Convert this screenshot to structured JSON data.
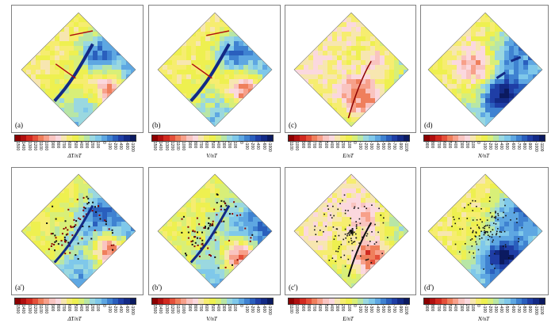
{
  "colors": [
    "#8b0000",
    "#b01010",
    "#d12a20",
    "#e4503a",
    "#ef7f5c",
    "#f7a08a",
    "#f9c4c0",
    "#fbd8de",
    "#f7e6b0",
    "#f6ed70",
    "#eef050",
    "#d8ef78",
    "#b8e6a6",
    "#9ad8e0",
    "#7fc8ea",
    "#5ea7e2",
    "#3f82d1",
    "#2a5fbd",
    "#1f3ea6",
    "#132a86",
    "#0b1a60"
  ],
  "panels": [
    {
      "label": "(a)",
      "unit": "ΔT/nT",
      "ticks": [
        "1500",
        "1400",
        "1300",
        "1200",
        "1100",
        "1000",
        "900",
        "800",
        "700",
        "600",
        "500",
        "400",
        "300",
        "200",
        "100",
        "0",
        "-100",
        "-200",
        "-400",
        "-600",
        "-1000"
      ]
    },
    {
      "label": "(b)",
      "unit": "V/nT",
      "ticks": [
        "1500",
        "1400",
        "1300",
        "1200",
        "1100",
        "1000",
        "900",
        "800",
        "700",
        "600",
        "500",
        "400",
        "300",
        "200",
        "100",
        "0",
        "-100",
        "-200",
        "-400",
        "-600",
        "-1000"
      ]
    },
    {
      "label": "(c)",
      "unit": "E/nT",
      "ticks": [
        "1100",
        "1000",
        "900",
        "800",
        "700",
        "600",
        "500",
        "400",
        "300",
        "200",
        "100",
        "0",
        "-100",
        "-200",
        "-300",
        "-400",
        "-500",
        "-600",
        "-700",
        "-900",
        "-1100"
      ]
    },
    {
      "label": "(d)",
      "unit": "N/nT",
      "ticks": [
        "900",
        "800",
        "700",
        "600",
        "500",
        "400",
        "300",
        "200",
        "100",
        "0",
        "-100",
        "-200",
        "-300",
        "-400",
        "-500",
        "-600",
        "-700",
        "-800",
        "-900",
        "-1000",
        "-1100"
      ]
    },
    {
      "label": "(a')",
      "unit": "ΔT/nT",
      "ticks": [
        "1500",
        "1400",
        "1300",
        "1200",
        "1100",
        "1000",
        "900",
        "800",
        "700",
        "600",
        "500",
        "400",
        "300",
        "200",
        "100",
        "0",
        "-100",
        "-200",
        "-400",
        "-600",
        "-1000"
      ]
    },
    {
      "label": "(b')",
      "unit": "V/nT",
      "ticks": [
        "1500",
        "1400",
        "1300",
        "1200",
        "1100",
        "1000",
        "900",
        "800",
        "700",
        "600",
        "500",
        "400",
        "300",
        "200",
        "100",
        "0",
        "-100",
        "-200",
        "-400",
        "-600",
        "-1000"
      ]
    },
    {
      "label": "(c')",
      "unit": "E/nT",
      "ticks": [
        "1100",
        "1000",
        "900",
        "800",
        "700",
        "600",
        "500",
        "400",
        "300",
        "200",
        "100",
        "0",
        "-100",
        "-200",
        "-300",
        "-400",
        "-500",
        "-600",
        "-700",
        "-900",
        "-1100"
      ]
    },
    {
      "label": "(d')",
      "unit": "N/nT",
      "ticks": [
        "900",
        "800",
        "700",
        "600",
        "500",
        "400",
        "300",
        "200",
        "100",
        "0",
        "-100",
        "-200",
        "-300",
        "-400",
        "-500",
        "-600",
        "-700",
        "-800",
        "-900",
        "-1000",
        "-1100"
      ]
    }
  ]
}
